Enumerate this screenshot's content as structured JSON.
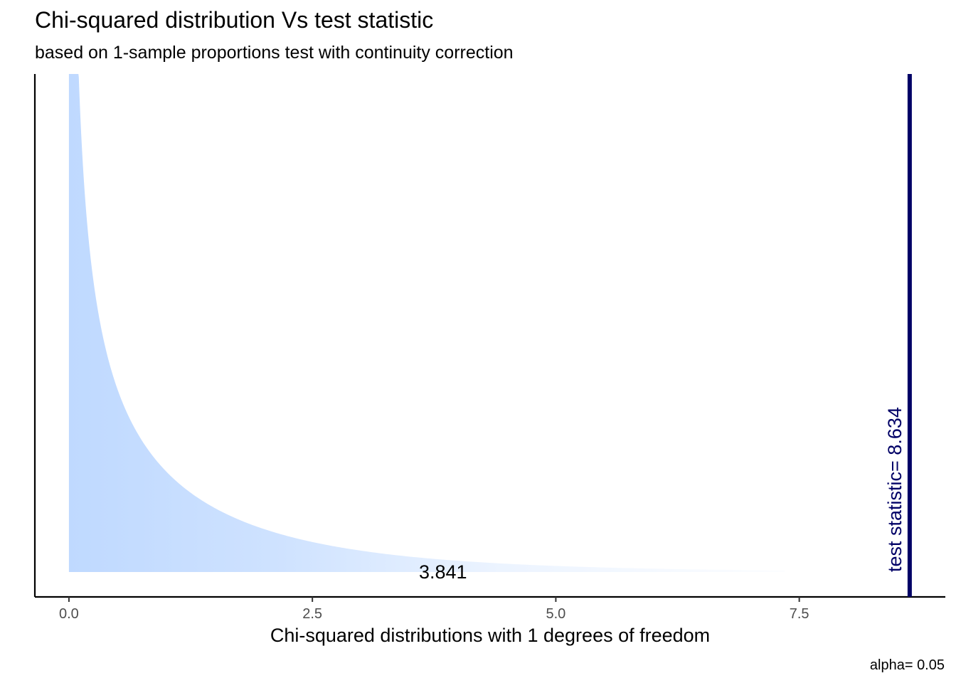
{
  "chart_data": {
    "type": "area",
    "title": "Chi-squared distribution Vs test statistic",
    "subtitle": "based on 1-sample proportions test with continuity correction",
    "xlabel": "Chi-squared distributions with 1 degrees of freedom",
    "ylabel": "",
    "caption": "alpha= 0.05",
    "df": 1,
    "xlim": [
      -0.35,
      9.0
    ],
    "x_ticks": [
      {
        "value": 0.0,
        "label": "0.0"
      },
      {
        "value": 2.5,
        "label": "2.5"
      },
      {
        "value": 5.0,
        "label": "5.0"
      },
      {
        "value": 7.5,
        "label": "7.5"
      }
    ],
    "density_range": [
      0.0,
      7.35
    ],
    "critical_value": 3.841,
    "critical_label": "3.841",
    "test_statistic": 8.634,
    "test_statistic_label": "test statistic= 8.634",
    "alpha": 0.05,
    "grid": false,
    "colors": {
      "fill": "#bfd9ff",
      "test_statistic_line": "#000066",
      "axis": "#000000"
    }
  }
}
